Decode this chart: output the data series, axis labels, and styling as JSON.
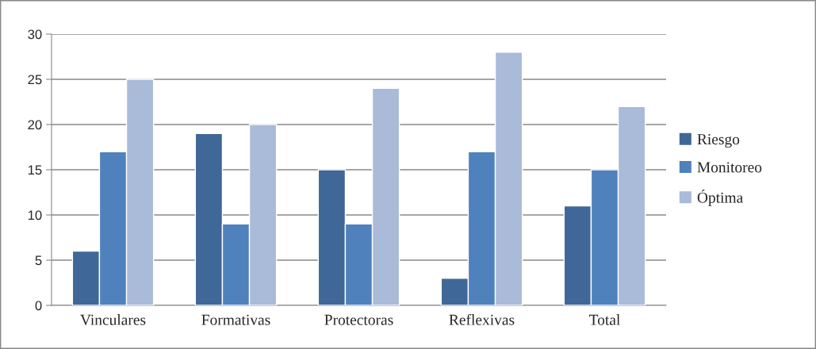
{
  "chart_data": {
    "type": "bar",
    "categories": [
      "Vinculares",
      "Formativas",
      "Protectoras",
      "Reflexivas",
      "Total"
    ],
    "series": [
      {
        "name": "Riesgo",
        "color": "#3f6797",
        "values": [
          6,
          19,
          15,
          3,
          11
        ]
      },
      {
        "name": "Monitoreo",
        "color": "#4f81bd",
        "values": [
          17,
          9,
          9,
          17,
          15
        ]
      },
      {
        "name": "Óptima",
        "color": "#aabad9",
        "values": [
          25,
          20,
          24,
          28,
          22
        ]
      }
    ],
    "ylim": [
      0,
      30
    ],
    "yticks": [
      0,
      5,
      10,
      15,
      20,
      25,
      30
    ],
    "grid": "y",
    "legend": "right"
  }
}
